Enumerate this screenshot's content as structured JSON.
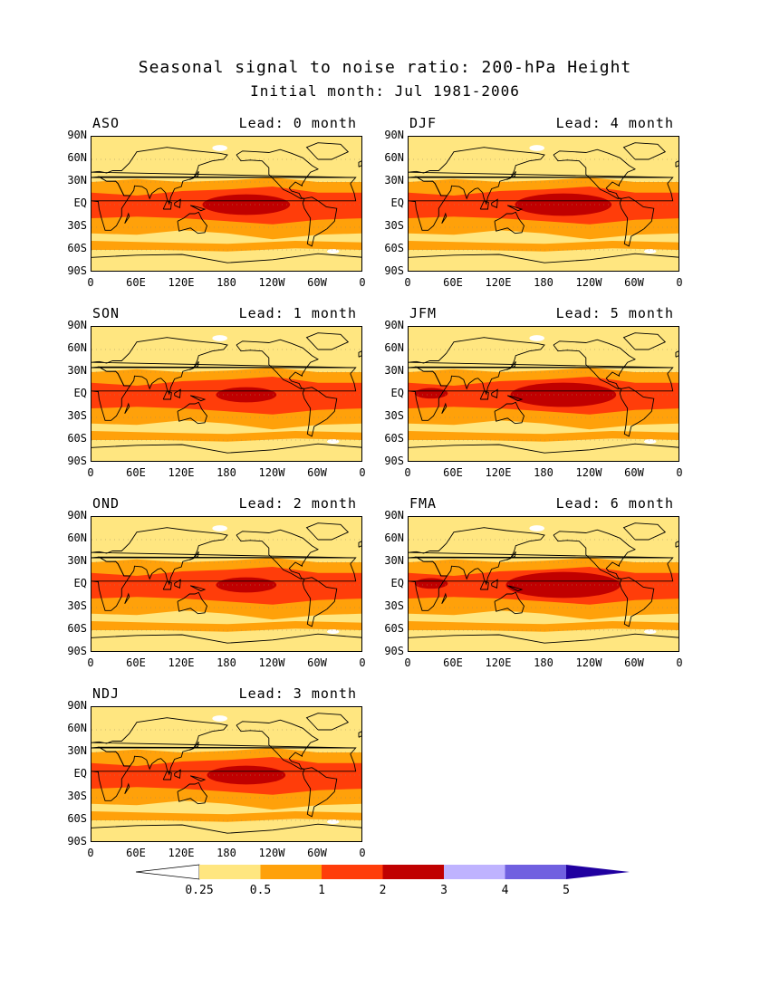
{
  "title": "Seasonal signal to noise ratio: 200-hPa Height",
  "subtitle": "Initial month: Jul 1981-2006",
  "lat_ticks": [
    "90N",
    "60N",
    "30N",
    "EQ",
    "30S",
    "60S",
    "90S"
  ],
  "lon_ticks": [
    "0",
    "60E",
    "120E",
    "180",
    "120W",
    "60W",
    "0"
  ],
  "panels": [
    {
      "season": "ASO",
      "lead": "Lead: 0 month",
      "trop_max": 2.3
    },
    {
      "season": "SON",
      "lead": "Lead: 1 month",
      "trop_max": 1.8
    },
    {
      "season": "OND",
      "lead": "Lead: 2 month",
      "trop_max": 1.9
    },
    {
      "season": "NDJ",
      "lead": "Lead: 3 month",
      "trop_max": 2.2
    },
    {
      "season": "DJF",
      "lead": "Lead: 4 month",
      "trop_max": 2.4
    },
    {
      "season": "JFM",
      "lead": "Lead: 5 month",
      "trop_max": 2.5
    },
    {
      "season": "FMA",
      "lead": "Lead: 6 month",
      "trop_max": 2.6
    }
  ],
  "colorbar": {
    "labels": [
      "0.25",
      "0.5",
      "1",
      "2",
      "3",
      "4",
      "5"
    ],
    "colors": [
      "#ffffff",
      "#ffe680",
      "#ffa10a",
      "#ff3d0a",
      "#c00000",
      "#bfb3ff",
      "#7060e0",
      "#2000a0"
    ]
  }
}
